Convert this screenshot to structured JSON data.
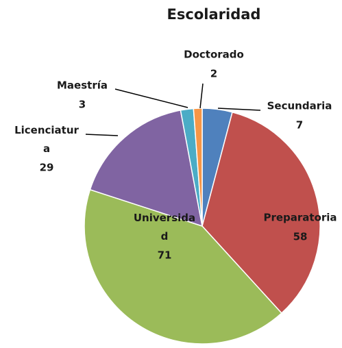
{
  "chart_data": {
    "type": "pie",
    "title": "Escolaridad",
    "categories": [
      "Secundaria",
      "Preparatoria",
      "Universidad",
      "Licenciatura",
      "Maestría",
      "Doctorado"
    ],
    "values": [
      7,
      58,
      71,
      29,
      3,
      2
    ],
    "colors": [
      "#4f81bd",
      "#c0504d",
      "#9bbb59",
      "#8064a2",
      "#4bacc6",
      "#f79646"
    ]
  }
}
